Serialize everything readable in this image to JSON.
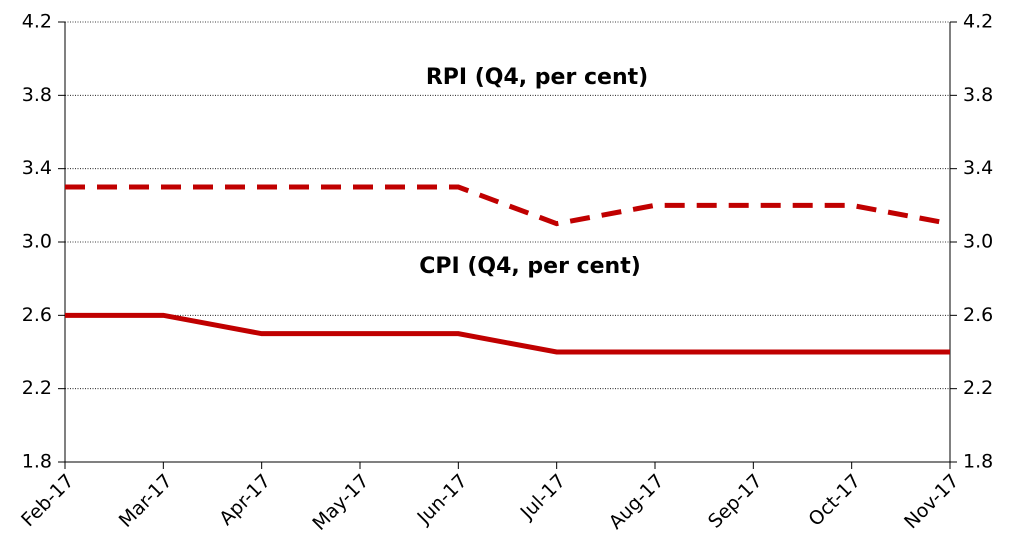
{
  "chart_data": {
    "type": "line",
    "annotations": [
      "RPI (Q4, per cent)",
      "CPI (Q4, per cent)"
    ],
    "categories": [
      "Feb-17",
      "Mar-17",
      "Apr-17",
      "May-17",
      "Jun-17",
      "Jul-17",
      "Aug-17",
      "Sep-17",
      "Oct-17",
      "Nov-17"
    ],
    "series": [
      {
        "name": "RPI",
        "color": "#c00000",
        "style": "dashed",
        "values": [
          3.3,
          3.3,
          3.3,
          3.3,
          3.3,
          3.1,
          3.2,
          3.2,
          3.2,
          3.1
        ]
      },
      {
        "name": "CPI",
        "color": "#c00000",
        "style": "solid",
        "values": [
          2.6,
          2.6,
          2.5,
          2.5,
          2.5,
          2.4,
          2.4,
          2.4,
          2.4,
          2.4
        ]
      }
    ],
    "ylim": [
      1.8,
      4.2
    ],
    "yticks": [
      1.8,
      2.2,
      2.6,
      {
        "value": 3,
        "label": "3.0"
      },
      3.4,
      3.8,
      4.2
    ],
    "y2lim": [
      1.8,
      4.2
    ],
    "y2ticks": [
      1.8,
      2.2,
      2.6,
      {
        "value": 3,
        "label": "3.0"
      },
      3.4,
      3.8,
      4.2
    ],
    "grid": true,
    "legend": false
  }
}
